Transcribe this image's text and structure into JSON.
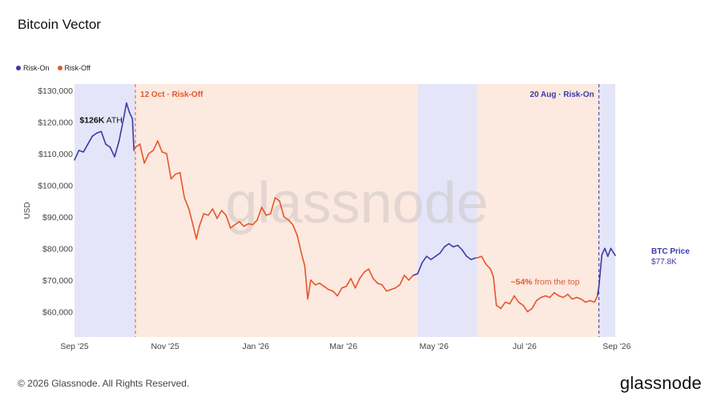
{
  "chart_data": {
    "type": "line",
    "title": "Bitcoin Vector",
    "ylabel": "USD",
    "ylim": [
      52000,
      132000
    ],
    "y_ticks": [
      60000,
      70000,
      80000,
      90000,
      100000,
      110000,
      120000,
      130000
    ],
    "y_tick_labels": [
      "$60,000",
      "$70,000",
      "$80,000",
      "$90,000",
      "$100,000",
      "$110,000",
      "$120,000",
      "$130,000"
    ],
    "x_range": [
      "2025-09-01",
      "2026-08-31"
    ],
    "x_ticks": [
      "2025-09-01",
      "2025-11-01",
      "2026-01-01",
      "2026-03-01",
      "2026-05-01",
      "2026-07-01",
      "2026-09-01"
    ],
    "x_tick_labels": [
      "Sep '25",
      "Nov '25",
      "Jan '26",
      "Mar '26",
      "May '26",
      "Jul '26",
      "Sep '26"
    ],
    "legend": [
      {
        "name": "Risk-On",
        "color": "#3b3ba6"
      },
      {
        "name": "Risk-Off",
        "color": "#e4572e"
      }
    ],
    "legend_position": "top-left",
    "regimes": [
      {
        "start": "2025-09-01",
        "end": "2025-10-12",
        "state": "Risk-On"
      },
      {
        "start": "2025-10-12",
        "end": "2026-04-20",
        "state": "Risk-Off"
      },
      {
        "start": "2026-04-20",
        "end": "2026-05-30",
        "state": "Risk-On"
      },
      {
        "start": "2026-05-30",
        "end": "2026-08-20",
        "state": "Risk-Off"
      },
      {
        "start": "2026-08-20",
        "end": "2026-08-31",
        "state": "Risk-On"
      }
    ],
    "series": [
      {
        "name": "BTC Price",
        "points": [
          [
            "2025-09-01",
            108000,
            "on"
          ],
          [
            "2025-09-04",
            111000,
            "on"
          ],
          [
            "2025-09-07",
            110500,
            "on"
          ],
          [
            "2025-09-10",
            113000,
            "on"
          ],
          [
            "2025-09-13",
            115500,
            "on"
          ],
          [
            "2025-09-16",
            116500,
            "on"
          ],
          [
            "2025-09-19",
            117000,
            "on"
          ],
          [
            "2025-09-22",
            113000,
            "on"
          ],
          [
            "2025-09-25",
            112000,
            "on"
          ],
          [
            "2025-09-28",
            109000,
            "on"
          ],
          [
            "2025-10-01",
            114000,
            "on"
          ],
          [
            "2025-10-04",
            121000,
            "on"
          ],
          [
            "2025-10-06",
            126000,
            "on"
          ],
          [
            "2025-10-08",
            123000,
            "on"
          ],
          [
            "2025-10-10",
            121000,
            "on"
          ],
          [
            "2025-10-11",
            111000,
            "on"
          ],
          [
            "2025-10-12",
            112000,
            "off"
          ],
          [
            "2025-10-15",
            113000,
            "off"
          ],
          [
            "2025-10-18",
            107000,
            "off"
          ],
          [
            "2025-10-21",
            110000,
            "off"
          ],
          [
            "2025-10-24",
            111000,
            "off"
          ],
          [
            "2025-10-27",
            114000,
            "off"
          ],
          [
            "2025-10-30",
            110500,
            "off"
          ],
          [
            "2025-11-02",
            110000,
            "off"
          ],
          [
            "2025-11-05",
            102000,
            "off"
          ],
          [
            "2025-11-08",
            103500,
            "off"
          ],
          [
            "2025-11-11",
            104000,
            "off"
          ],
          [
            "2025-11-14",
            96000,
            "off"
          ],
          [
            "2025-11-17",
            92500,
            "off"
          ],
          [
            "2025-11-20",
            87000,
            "off"
          ],
          [
            "2025-11-22",
            83000,
            "off"
          ],
          [
            "2025-11-24",
            87000,
            "off"
          ],
          [
            "2025-11-27",
            91000,
            "off"
          ],
          [
            "2025-11-30",
            90500,
            "off"
          ],
          [
            "2025-12-03",
            92500,
            "off"
          ],
          [
            "2025-12-06",
            89500,
            "off"
          ],
          [
            "2025-12-09",
            92000,
            "off"
          ],
          [
            "2025-12-12",
            90500,
            "off"
          ],
          [
            "2025-12-15",
            86500,
            "off"
          ],
          [
            "2025-12-18",
            87500,
            "off"
          ],
          [
            "2025-12-21",
            88500,
            "off"
          ],
          [
            "2025-12-24",
            87000,
            "off"
          ],
          [
            "2025-12-27",
            87800,
            "off"
          ],
          [
            "2025-12-30",
            87500,
            "off"
          ],
          [
            "2026-01-02",
            89000,
            "off"
          ],
          [
            "2026-01-05",
            93000,
            "off"
          ],
          [
            "2026-01-08",
            90500,
            "off"
          ],
          [
            "2026-01-11",
            91000,
            "off"
          ],
          [
            "2026-01-14",
            96000,
            "off"
          ],
          [
            "2026-01-17",
            95000,
            "off"
          ],
          [
            "2026-01-20",
            90000,
            "off"
          ],
          [
            "2026-01-23",
            89000,
            "off"
          ],
          [
            "2026-01-26",
            87500,
            "off"
          ],
          [
            "2026-01-29",
            84000,
            "off"
          ],
          [
            "2026-02-01",
            78000,
            "off"
          ],
          [
            "2026-02-03",
            74500,
            "off"
          ],
          [
            "2026-02-05",
            64000,
            "off"
          ],
          [
            "2026-02-07",
            70000,
            "off"
          ],
          [
            "2026-02-10",
            68500,
            "off"
          ],
          [
            "2026-02-13",
            69000,
            "off"
          ],
          [
            "2026-02-16",
            68000,
            "off"
          ],
          [
            "2026-02-19",
            67000,
            "off"
          ],
          [
            "2026-02-22",
            66500,
            "off"
          ],
          [
            "2026-02-25",
            65000,
            "off"
          ],
          [
            "2026-02-28",
            67500,
            "off"
          ],
          [
            "2026-03-03",
            68000,
            "off"
          ],
          [
            "2026-03-06",
            70500,
            "off"
          ],
          [
            "2026-03-09",
            67500,
            "off"
          ],
          [
            "2026-03-12",
            70500,
            "off"
          ],
          [
            "2026-03-15",
            72500,
            "off"
          ],
          [
            "2026-03-18",
            73500,
            "off"
          ],
          [
            "2026-03-21",
            70500,
            "off"
          ],
          [
            "2026-03-24",
            69000,
            "off"
          ],
          [
            "2026-03-27",
            68500,
            "off"
          ],
          [
            "2026-03-30",
            66500,
            "off"
          ],
          [
            "2026-04-02",
            67000,
            "off"
          ],
          [
            "2026-04-05",
            67500,
            "off"
          ],
          [
            "2026-04-08",
            68500,
            "off"
          ],
          [
            "2026-04-11",
            71500,
            "off"
          ],
          [
            "2026-04-14",
            70000,
            "off"
          ],
          [
            "2026-04-17",
            71500,
            "off"
          ],
          [
            "2026-04-20",
            72000,
            "on"
          ],
          [
            "2026-04-23",
            75500,
            "on"
          ],
          [
            "2026-04-26",
            77500,
            "on"
          ],
          [
            "2026-04-29",
            76500,
            "on"
          ],
          [
            "2026-05-02",
            77500,
            "on"
          ],
          [
            "2026-05-05",
            78500,
            "on"
          ],
          [
            "2026-05-08",
            80500,
            "on"
          ],
          [
            "2026-05-11",
            81500,
            "on"
          ],
          [
            "2026-05-14",
            80500,
            "on"
          ],
          [
            "2026-05-17",
            81000,
            "on"
          ],
          [
            "2026-05-20",
            79500,
            "on"
          ],
          [
            "2026-05-23",
            77500,
            "on"
          ],
          [
            "2026-05-26",
            76500,
            "on"
          ],
          [
            "2026-05-29",
            77000,
            "on"
          ],
          [
            "2026-05-30",
            77000,
            "off"
          ],
          [
            "2026-06-02",
            77500,
            "off"
          ],
          [
            "2026-06-05",
            75000,
            "off"
          ],
          [
            "2026-06-08",
            73500,
            "off"
          ],
          [
            "2026-06-10",
            71000,
            "off"
          ],
          [
            "2026-06-12",
            62000,
            "off"
          ],
          [
            "2026-06-15",
            61000,
            "off"
          ],
          [
            "2026-06-18",
            63000,
            "off"
          ],
          [
            "2026-06-21",
            62500,
            "off"
          ],
          [
            "2026-06-24",
            65000,
            "off"
          ],
          [
            "2026-06-27",
            63000,
            "off"
          ],
          [
            "2026-06-30",
            62000,
            "off"
          ],
          [
            "2026-07-03",
            60000,
            "off"
          ],
          [
            "2026-07-06",
            61000,
            "off"
          ],
          [
            "2026-07-09",
            63500,
            "off"
          ],
          [
            "2026-07-12",
            64500,
            "off"
          ],
          [
            "2026-07-15",
            65000,
            "off"
          ],
          [
            "2026-07-18",
            64500,
            "off"
          ],
          [
            "2026-07-21",
            66000,
            "off"
          ],
          [
            "2026-07-24",
            65000,
            "off"
          ],
          [
            "2026-07-27",
            64500,
            "off"
          ],
          [
            "2026-07-30",
            65500,
            "off"
          ],
          [
            "2026-08-02",
            64000,
            "off"
          ],
          [
            "2026-08-05",
            64500,
            "off"
          ],
          [
            "2026-08-08",
            64000,
            "off"
          ],
          [
            "2026-08-11",
            63000,
            "off"
          ],
          [
            "2026-08-14",
            63500,
            "off"
          ],
          [
            "2026-08-17",
            63000,
            "off"
          ],
          [
            "2026-08-19",
            65000,
            "off"
          ],
          [
            "2026-08-20",
            68000,
            "on"
          ],
          [
            "2026-08-22",
            78000,
            "on"
          ],
          [
            "2026-08-24",
            80000,
            "on"
          ],
          [
            "2026-08-26",
            77500,
            "on"
          ],
          [
            "2026-08-28",
            80000,
            "on"
          ],
          [
            "2026-08-31",
            77800,
            "on"
          ]
        ]
      }
    ],
    "annotations": [
      {
        "x": "2025-10-12",
        "text": "12 Oct · Risk-Off",
        "color": "#e4572e"
      },
      {
        "x": "2026-08-20",
        "text": "20 Aug · Risk-On",
        "color": "#3b3ba6"
      },
      {
        "x": "2025-10-06",
        "y": 126000,
        "bold": "$126K",
        "text": " ATH"
      },
      {
        "x": "2026-07-04",
        "y": 60000,
        "bold": "~54%",
        "text": " from the top",
        "color": "#e4572e"
      }
    ],
    "end_label": {
      "name": "BTC Price",
      "value": "$77.8K"
    }
  },
  "watermark": "glassnode",
  "footer": "© 2026 Glassnode. All Rights Reserved.",
  "logo": "glassnode"
}
